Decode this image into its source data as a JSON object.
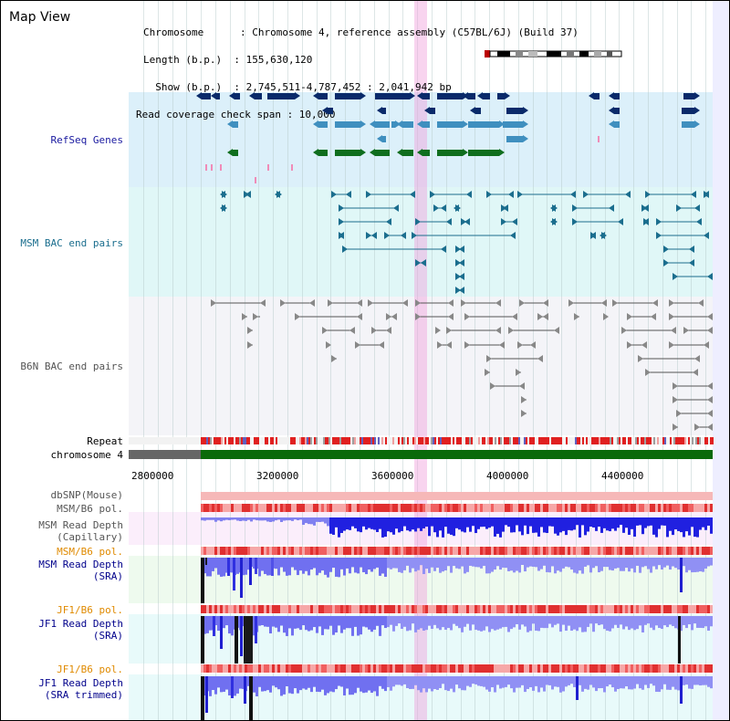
{
  "header": {
    "title": "Map View",
    "info_lines": [
      "Chromosome      : Chromosome 4, reference assembly (C57BL/6J) (Build 37)",
      "Length (b.p.)  : 155,630,120",
      "  Show (b.p.)  : 2,745,511-4,787,452 : 2,041,942 bp",
      "Read coverage check span : 10,000"
    ]
  },
  "tracks": {
    "refseq": "RefSeq Genes",
    "msm_bac": "MSM BAC end pairs",
    "b6n_bac": "B6N BAC end pairs",
    "repeat": "Repeat",
    "chromosome": "chromosome 4",
    "dbsnp": "dbSNP(Mouse)",
    "msm_b6_pol_1": "MSM/B6 pol.",
    "msm_read_depth_cap": "MSM Read Depth\n(Capillary)",
    "msm_b6_pol_2": "MSM/B6 pol.",
    "msm_read_depth_sra": "MSM Read Depth\n(SRA)",
    "jf1_b6_pol_1": "JF1/B6 pol.",
    "jf1_read_depth_sra": "JF1 Read Depth\n(SRA)",
    "jf1_b6_pol_2": "JF1/B6 pol.",
    "jf1_read_depth_trim": "JF1 Read Depth\n(SRA trimmed)"
  },
  "axis_ticks": [
    "2800000",
    "3200000",
    "3600000",
    "4000000",
    "4400000"
  ],
  "colors": {
    "refseq_dark": "#0a2a6a",
    "refseq_mid": "#3f8fbf",
    "refseq_green": "#0f6e1e",
    "msm_bac": "#1b6e8e",
    "b6n_bac": "#555555",
    "depth_blue": "#2020e0",
    "highlight": "#f0a0dc"
  }
}
